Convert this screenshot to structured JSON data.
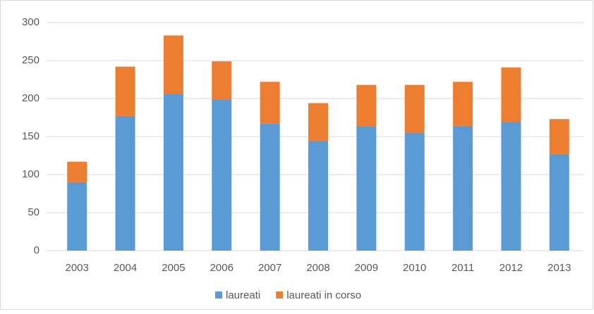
{
  "chart_data": {
    "type": "stacked-bar",
    "categories": [
      "2003",
      "2004",
      "2005",
      "2006",
      "2007",
      "2008",
      "2009",
      "2010",
      "2011",
      "2012",
      "2013"
    ],
    "series": [
      {
        "name": "laureati",
        "color": "#5b9bd5",
        "values": [
          90,
          177,
          206,
          199,
          167,
          144,
          163,
          155,
          164,
          169,
          127
        ]
      },
      {
        "name": "laureati in corso",
        "color": "#ed7d31",
        "values": [
          27,
          65,
          77,
          50,
          55,
          50,
          55,
          63,
          58,
          72,
          46
        ]
      }
    ],
    "ylim": [
      0,
      300
    ],
    "yticks": [
      0,
      50,
      100,
      150,
      200,
      250,
      300
    ],
    "grid": true,
    "legend": "bottom"
  }
}
